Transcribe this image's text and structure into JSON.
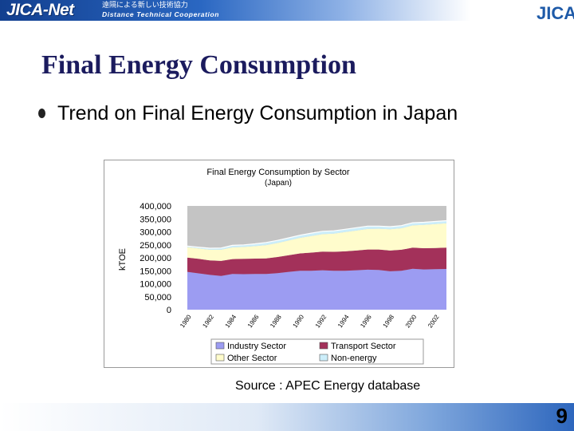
{
  "header": {
    "logo_text": "JICA-Net",
    "logo_jp": "遠隔による新しい技術協力",
    "logo_sub": "Distance Technical Cooperation",
    "org_logo": "JICA"
  },
  "slide": {
    "title": "Final Energy Consumption",
    "bullet": "Trend on Final Energy Consumption in Japan",
    "source": "Source : APEC Energy database",
    "page_number": "9"
  },
  "colors": {
    "industry": "#9c9cf2",
    "transport": "#a3315a",
    "other": "#fffccc",
    "nonenergy": "#cceefa",
    "plot_bg": "#c4c4c4",
    "title_color": "#1b1b5e"
  },
  "chart_data": {
    "type": "area",
    "stacked": true,
    "title": "Final Energy Consumption by Sector",
    "subtitle": "(Japan)",
    "xlabel": "",
    "ylabel": "kTOE",
    "ylim": [
      0,
      400000
    ],
    "yticks": [
      "0",
      "50,000",
      "100,000",
      "150,000",
      "200,000",
      "250,000",
      "300,000",
      "350,000",
      "400,000"
    ],
    "xtick_labels": [
      "1980",
      "1982",
      "1984",
      "1986",
      "1988",
      "1990",
      "1992",
      "1994",
      "1996",
      "1998",
      "2000",
      "2002"
    ],
    "x": [
      1980,
      1981,
      1982,
      1983,
      1984,
      1985,
      1986,
      1987,
      1988,
      1989,
      1990,
      1991,
      1992,
      1993,
      1994,
      1995,
      1996,
      1997,
      1998,
      1999,
      2000,
      2001,
      2002,
      2003
    ],
    "grid": false,
    "legend_position": "bottom",
    "series": [
      {
        "name": "Industry Sector",
        "values": [
          146000,
          140000,
          134000,
          130000,
          138000,
          137000,
          138000,
          138000,
          141000,
          146000,
          150000,
          150000,
          152000,
          150000,
          150000,
          152000,
          154000,
          153000,
          148000,
          150000,
          158000,
          155000,
          156000,
          157000
        ]
      },
      {
        "name": "Transport Sector",
        "values": [
          55000,
          56000,
          56000,
          58000,
          57000,
          59000,
          59000,
          60000,
          62000,
          64000,
          67000,
          70000,
          72000,
          73000,
          75000,
          76000,
          78000,
          79000,
          80000,
          81000,
          81000,
          82000,
          82000,
          82000
        ]
      },
      {
        "name": "Other Sector",
        "values": [
          40000,
          40000,
          41000,
          43000,
          45000,
          46000,
          48000,
          51000,
          54000,
          57000,
          60000,
          64000,
          67000,
          70000,
          74000,
          77000,
          79000,
          80000,
          82000,
          83000,
          86000,
          90000,
          92000,
          94000
        ]
      },
      {
        "name": "Non-energy",
        "values": [
          4000,
          5000,
          6000,
          7000,
          8000,
          8000,
          9000,
          10000,
          10000,
          10000,
          10000,
          11000,
          11000,
          11000,
          11000,
          11000,
          11000,
          10000,
          10000,
          10000,
          10000,
          10000,
          10000,
          10000
        ]
      }
    ]
  }
}
